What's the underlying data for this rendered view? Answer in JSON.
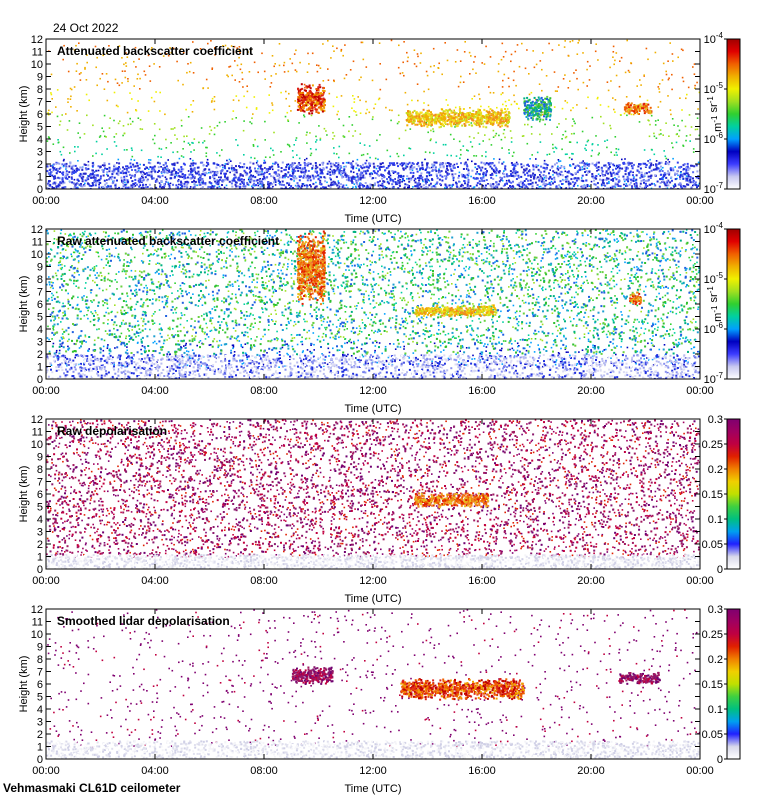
{
  "date": "24 Oct 2022",
  "footer": "Vehmasmaki CL61D ceilometer",
  "colors": {
    "background": "#ffffff",
    "low_layer": "#1a2bd8",
    "aerosol_green": "#36c23a",
    "cloud_yellow": "#f5e020",
    "cloud_orange": "#f08a1e",
    "cloud_red": "#dd2218",
    "noise_purple": "#8b1a6e"
  },
  "chart_data": [
    {
      "type": "heatmap",
      "title": "Attenuated backscatter coefficient",
      "xlabel": "Time (UTC)",
      "ylabel": "Height (km)",
      "x_ticks": [
        "00:00",
        "04:00",
        "08:00",
        "12:00",
        "16:00",
        "20:00",
        "00:00"
      ],
      "y_ticks": [
        "0",
        "1",
        "2",
        "3",
        "4",
        "5",
        "6",
        "7",
        "8",
        "9",
        "10",
        "11",
        "12"
      ],
      "xlim_hours": [
        0,
        24
      ],
      "ylim_km": [
        0,
        12
      ],
      "colorbar": {
        "scale": "log",
        "unit": "m-1 sr-1",
        "ticks": [
          "10-7",
          "10-6",
          "10-5",
          "10-4"
        ],
        "range": [
          1e-07,
          0.0001
        ]
      },
      "features": [
        {
          "name": "boundary layer",
          "t": [
            0,
            24
          ],
          "h": [
            0,
            2.2
          ],
          "level": "blue"
        },
        {
          "name": "cloud 1",
          "t": [
            13.2,
            17.0
          ],
          "h": [
            5.0,
            6.5
          ],
          "level": "yellow"
        },
        {
          "name": "cloud 2",
          "t": [
            9.2,
            10.2
          ],
          "h": [
            6.0,
            8.5
          ],
          "level": "red"
        },
        {
          "name": "cloud 3",
          "t": [
            21.2,
            22.2
          ],
          "h": [
            6.0,
            7.0
          ],
          "level": "orange"
        },
        {
          "name": "cloud 4",
          "t": [
            17.5,
            18.5
          ],
          "h": [
            5.5,
            7.5
          ],
          "level": "green"
        }
      ]
    },
    {
      "type": "heatmap",
      "title": "Raw attenuated backscatter coefficient",
      "xlabel": "Time (UTC)",
      "ylabel": "Height (km)",
      "x_ticks": [
        "00:00",
        "04:00",
        "08:00",
        "12:00",
        "16:00",
        "20:00",
        "00:00"
      ],
      "y_ticks": [
        "0",
        "1",
        "2",
        "3",
        "4",
        "5",
        "6",
        "7",
        "8",
        "9",
        "10",
        "11",
        "12"
      ],
      "xlim_hours": [
        0,
        24
      ],
      "ylim_km": [
        0,
        12
      ],
      "colorbar": {
        "scale": "log",
        "unit": "m-1 sr-1",
        "ticks": [
          "10-7",
          "10-6",
          "10-5",
          "10-4"
        ],
        "range": [
          1e-07,
          0.0001
        ]
      },
      "features": [
        {
          "name": "noise field",
          "t": [
            0,
            24
          ],
          "h": [
            2,
            12
          ],
          "level": "green"
        },
        {
          "name": "boundary layer",
          "t": [
            0,
            24
          ],
          "h": [
            0,
            2
          ],
          "level": "white-blue"
        },
        {
          "name": "cloud 1",
          "t": [
            13.5,
            16.5
          ],
          "h": [
            5.0,
            6.0
          ],
          "level": "yellow"
        },
        {
          "name": "cloud 2",
          "t": [
            9.2,
            10.2
          ],
          "h": [
            6.0,
            12.0
          ],
          "level": "orange"
        },
        {
          "name": "cloud 3",
          "t": [
            21.4,
            21.8
          ],
          "h": [
            6.0,
            7.0
          ],
          "level": "orange"
        }
      ]
    },
    {
      "type": "heatmap",
      "title": "Raw depolarisation",
      "xlabel": "Time (UTC)",
      "ylabel": "Height (km)",
      "x_ticks": [
        "00:00",
        "04:00",
        "08:00",
        "12:00",
        "16:00",
        "20:00",
        "00:00"
      ],
      "y_ticks": [
        "0",
        "1",
        "2",
        "3",
        "4",
        "5",
        "6",
        "7",
        "8",
        "9",
        "10",
        "11",
        "12"
      ],
      "xlim_hours": [
        0,
        24
      ],
      "ylim_km": [
        0,
        12
      ],
      "colorbar": {
        "scale": "linear",
        "unit": "",
        "ticks": [
          "0",
          "0.05",
          "0.1",
          "0.15",
          "0.2",
          "0.25",
          "0.3"
        ],
        "range": [
          0,
          0.3
        ]
      },
      "features": [
        {
          "name": "noise field",
          "t": [
            0,
            24
          ],
          "h": [
            1.2,
            12
          ],
          "level": "purple"
        },
        {
          "name": "boundary layer",
          "t": [
            0,
            24
          ],
          "h": [
            0,
            1.2
          ],
          "level": "white"
        },
        {
          "name": "cloud 1",
          "t": [
            13.5,
            16.2
          ],
          "h": [
            5.0,
            6.2
          ],
          "level": "orange"
        }
      ]
    },
    {
      "type": "heatmap",
      "title": "Smoothed lidar depolarisation",
      "xlabel": "Time (UTC)",
      "ylabel": "Height (km)",
      "x_ticks": [
        "00:00",
        "04:00",
        "08:00",
        "12:00",
        "16:00",
        "20:00",
        "00:00"
      ],
      "y_ticks": [
        "0",
        "1",
        "2",
        "3",
        "4",
        "5",
        "6",
        "7",
        "8",
        "9",
        "10",
        "11",
        "12"
      ],
      "xlim_hours": [
        0,
        24
      ],
      "ylim_km": [
        0,
        12
      ],
      "colorbar": {
        "scale": "linear",
        "unit": "",
        "ticks": [
          "0",
          "0.05",
          "0.1",
          "0.15",
          "0.2",
          "0.25",
          "0.3"
        ],
        "range": [
          0,
          0.3
        ]
      },
      "features": [
        {
          "name": "boundary layer",
          "t": [
            0,
            24
          ],
          "h": [
            0,
            1.5
          ],
          "level": "white"
        },
        {
          "name": "cloud 1",
          "t": [
            13.0,
            17.5
          ],
          "h": [
            4.8,
            6.5
          ],
          "level": "red"
        },
        {
          "name": "cloud 2",
          "t": [
            9.0,
            10.5
          ],
          "h": [
            6.0,
            7.5
          ],
          "level": "purple"
        },
        {
          "name": "cloud 3",
          "t": [
            21.0,
            22.5
          ],
          "h": [
            6.0,
            7.0
          ],
          "level": "purple"
        }
      ]
    }
  ]
}
